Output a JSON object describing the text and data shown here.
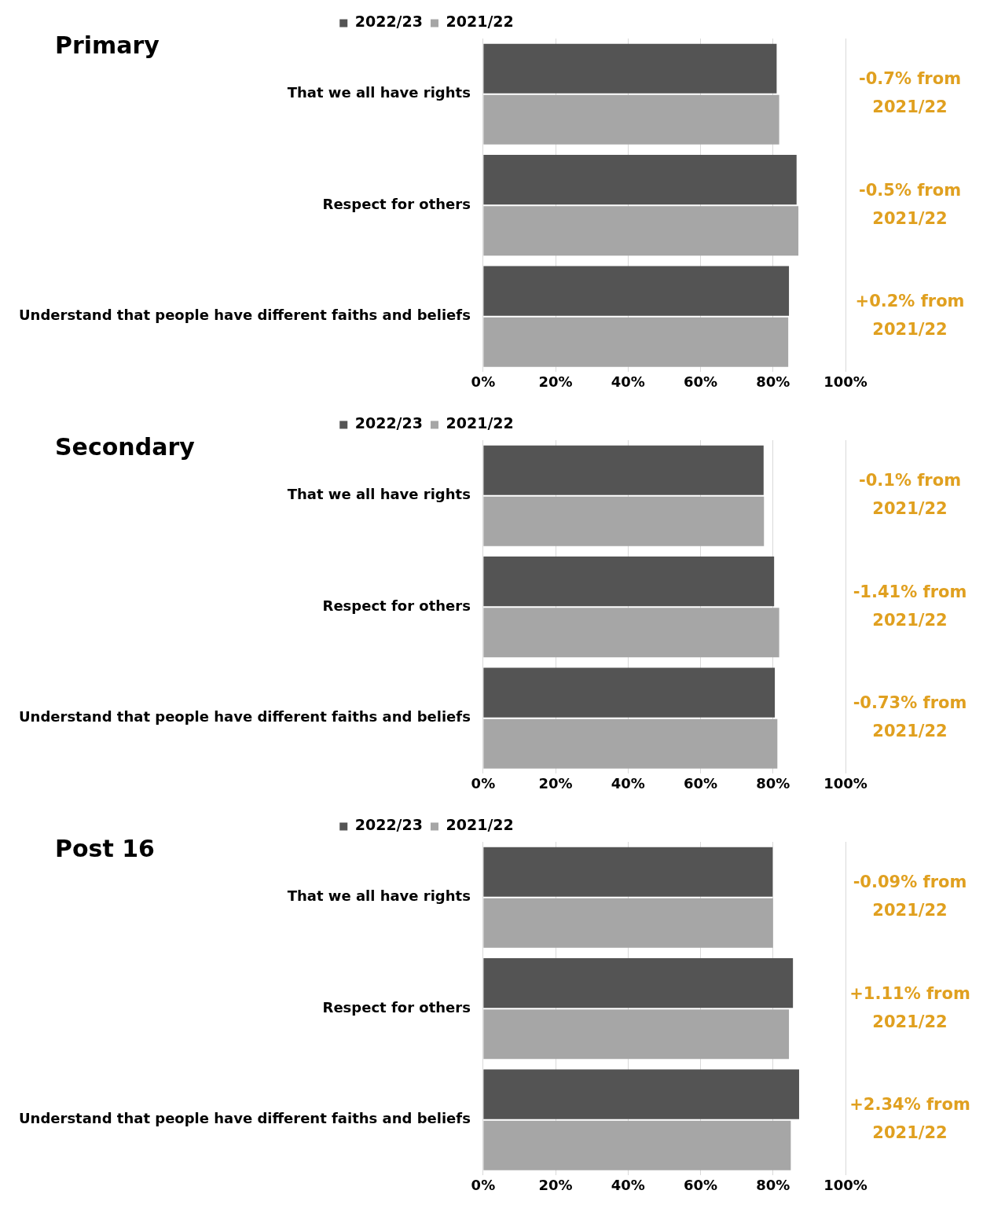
{
  "chart_data": [
    {
      "type": "bar",
      "orientation": "horizontal",
      "title": "Primary",
      "categories": [
        "That we all have rights",
        "Respect for others",
        "Understand that people have different faiths and beliefs"
      ],
      "series": [
        {
          "name": "2022/23",
          "color": "#545454",
          "values": [
            81.0,
            86.5,
            84.4
          ]
        },
        {
          "name": "2021/22",
          "color": "#a6a6a6",
          "values": [
            81.7,
            87.0,
            84.2
          ]
        }
      ],
      "xlim": [
        0,
        100
      ],
      "xticks": [
        {
          "value": 0,
          "label": "0%"
        },
        {
          "value": 20,
          "label": "20%"
        },
        {
          "value": 40,
          "label": "40%"
        },
        {
          "value": 60,
          "label": "60%"
        },
        {
          "value": 80,
          "label": "80%"
        },
        {
          "value": 100,
          "label": "100%"
        }
      ],
      "grid": "x",
      "legend": "top",
      "annotations": [
        "-0.7% from 2021/22",
        "-0.5% from 2021/22",
        "+0.2% from 2021/22"
      ]
    },
    {
      "type": "bar",
      "orientation": "horizontal",
      "title": "Secondary",
      "categories": [
        "That we all have rights",
        "Respect for others",
        "Understand that people have different faiths and beliefs"
      ],
      "series": [
        {
          "name": "2022/23",
          "color": "#545454",
          "values": [
            77.4,
            80.3,
            80.5
          ]
        },
        {
          "name": "2021/22",
          "color": "#a6a6a6",
          "values": [
            77.5,
            81.7,
            81.2
          ]
        }
      ],
      "xlim": [
        0,
        100
      ],
      "xticks": [
        {
          "value": 0,
          "label": "0%"
        },
        {
          "value": 20,
          "label": "20%"
        },
        {
          "value": 40,
          "label": "40%"
        },
        {
          "value": 60,
          "label": "60%"
        },
        {
          "value": 80,
          "label": "80%"
        },
        {
          "value": 100,
          "label": "100%"
        }
      ],
      "grid": "x",
      "legend": "top",
      "annotations": [
        "-0.1% from 2021/22",
        "-1.41% from 2021/22",
        "-0.73% from 2021/22"
      ]
    },
    {
      "type": "bar",
      "orientation": "horizontal",
      "title": "Post 16",
      "categories": [
        "That we all have rights",
        "Respect for others",
        "Understand that people have different faiths and beliefs"
      ],
      "series": [
        {
          "name": "2022/23",
          "color": "#545454",
          "values": [
            79.9,
            85.5,
            87.2
          ]
        },
        {
          "name": "2021/22",
          "color": "#a6a6a6",
          "values": [
            80.0,
            84.4,
            84.9
          ]
        }
      ],
      "xlim": [
        0,
        100
      ],
      "xticks": [
        {
          "value": 0,
          "label": "0%"
        },
        {
          "value": 20,
          "label": "20%"
        },
        {
          "value": 40,
          "label": "40%"
        },
        {
          "value": 60,
          "label": "60%"
        },
        {
          "value": 80,
          "label": "80%"
        },
        {
          "value": 100,
          "label": "100%"
        }
      ],
      "grid": "x",
      "legend": "top",
      "annotations": [
        "-0.09% from 2021/22",
        "+1.11% from 2021/22",
        "+2.34% from 2021/22"
      ]
    }
  ]
}
